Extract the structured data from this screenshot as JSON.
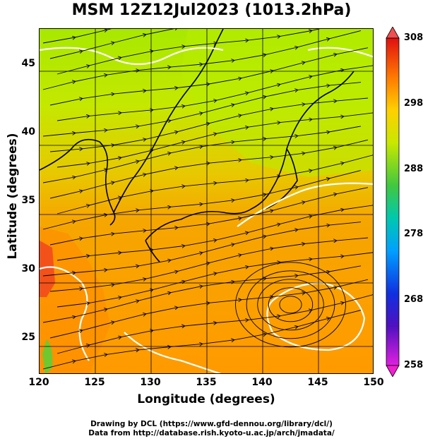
{
  "title": "MSM 12Z12Jul2023 (1013.2hPa)",
  "axes": {
    "xlabel": "Longitude (degrees)",
    "ylabel": "Latitude  (degrees)",
    "xlim": [
      120,
      150
    ],
    "ylim": [
      22.4,
      47.6
    ],
    "xticks": [
      "120",
      "125",
      "130",
      "135",
      "140",
      "145",
      "150"
    ],
    "yticks": [
      "25",
      "30",
      "35",
      "40",
      "45"
    ],
    "grid": true
  },
  "colorbar": {
    "min": 258,
    "max": 308,
    "labels": [
      "308",
      "298",
      "288",
      "278",
      "268",
      "258"
    ]
  },
  "credit": {
    "line1": "Drawing by DCL (https://www.gfd-dennou.org/library/dcl/)",
    "line2": "Data from http://database.rish.kyoto-u.ac.jp/arch/jmadata/"
  },
  "chart_data": {
    "type": "heatmap",
    "field": "temperature with wind streamlines",
    "units": "K",
    "colorbar_range": [
      258,
      308
    ],
    "features": {
      "cyclonic_circulation_center": [
        142.5,
        27.5
      ]
    }
  }
}
